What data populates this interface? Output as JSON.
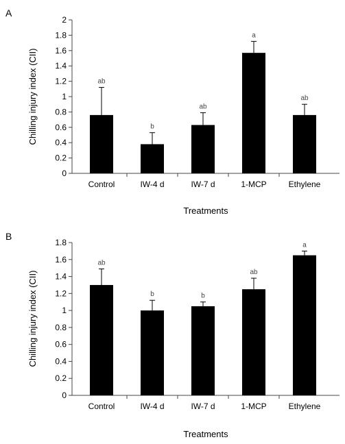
{
  "chart_data": [
    {
      "panel": "A",
      "type": "bar",
      "categories": [
        "Control",
        "IW-4 d",
        "IW-7 d",
        "1-MCP",
        "Ethylene"
      ],
      "values": [
        0.76,
        0.38,
        0.63,
        1.57,
        0.76
      ],
      "errors": [
        0.36,
        0.15,
        0.16,
        0.15,
        0.14
      ],
      "significance": [
        "ab",
        "b",
        "ab",
        "a",
        "ab"
      ],
      "xlabel": "Treatments",
      "ylabel": "Chilling injury index (CII)",
      "ylim": [
        0,
        2
      ],
      "yticks": [
        "0",
        "0.2",
        "0.4",
        "0.6",
        "0.8",
        "1",
        "1.2",
        "1.4",
        "1.6",
        "1.8",
        "2"
      ],
      "bar_color": "#000000",
      "grid": false,
      "legend": "none"
    },
    {
      "panel": "B",
      "type": "bar",
      "categories": [
        "Control",
        "IW-4 d",
        "IW-7 d",
        "1-MCP",
        "Ethylene"
      ],
      "values": [
        1.3,
        1.0,
        1.05,
        1.25,
        1.65
      ],
      "errors": [
        0.19,
        0.12,
        0.05,
        0.13,
        0.05
      ],
      "significance": [
        "ab",
        "b",
        "b",
        "ab",
        "a"
      ],
      "xlabel": "Treatments",
      "ylabel": "Chilling injury index (CII)",
      "ylim": [
        0,
        1.8
      ],
      "yticks": [
        "0",
        "0.2",
        "0.4",
        "0.6",
        "0.8",
        "1",
        "1.2",
        "1.4",
        "1.6",
        "1.8"
      ],
      "bar_color": "#000000",
      "grid": false,
      "legend": "none"
    }
  ]
}
